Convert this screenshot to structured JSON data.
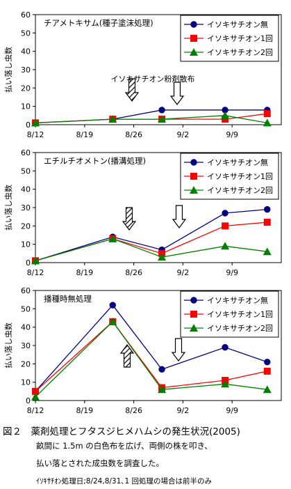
{
  "chart_data": [
    {
      "type": "line",
      "title": "チアメトキサム(種子塗沫処理)",
      "ylabel": "払い落し虫数",
      "xlabel": "",
      "x": [
        "8/12",
        "8/23",
        "8/30",
        "9/8",
        "9/14"
      ],
      "x_ticks": [
        "8/12",
        "8/19",
        "8/26",
        "9/2",
        "9/9"
      ],
      "ylim": [
        0,
        60
      ],
      "y_ticks": [
        0,
        10,
        20,
        30,
        40,
        50,
        60
      ],
      "legend_position": "top-right",
      "series": [
        {
          "name": "イソキサチオン無",
          "color": "#000080",
          "marker": "circle",
          "values": [
            1,
            3,
            8,
            8,
            8
          ]
        },
        {
          "name": "イソキサチオン1回",
          "color": "#ff0000",
          "marker": "square",
          "values": [
            1,
            3,
            3,
            3,
            6
          ]
        },
        {
          "name": "イソキサチオン2回",
          "color": "#008000",
          "marker": "triangle",
          "values": [
            1,
            3,
            3,
            5,
            1
          ]
        }
      ],
      "annotation": "イソキサチオン粉剤散布"
    },
    {
      "type": "line",
      "title": "エチルチオメトン(播溝処理)",
      "ylabel": "払い落し虫数",
      "xlabel": "",
      "x": [
        "8/12",
        "8/23",
        "8/30",
        "9/8",
        "9/14"
      ],
      "x_ticks": [
        "8/12",
        "8/19",
        "8/26",
        "9/2",
        "9/9"
      ],
      "ylim": [
        0,
        60
      ],
      "y_ticks": [
        0,
        10,
        20,
        30,
        40,
        50,
        60
      ],
      "legend_position": "top-right",
      "series": [
        {
          "name": "イソキサチオン無",
          "color": "#000080",
          "marker": "circle",
          "values": [
            1,
            14,
            7,
            27,
            29
          ]
        },
        {
          "name": "イソキサチオン1回",
          "color": "#ff0000",
          "marker": "square",
          "values": [
            1,
            13,
            5,
            20,
            22
          ]
        },
        {
          "name": "イソキサチオン2回",
          "color": "#008000",
          "marker": "triangle",
          "values": [
            1,
            13,
            3,
            9,
            6
          ]
        }
      ]
    },
    {
      "type": "line",
      "title": "播種時無処理",
      "ylabel": "払い落し虫数",
      "xlabel": "",
      "x": [
        "8/12",
        "8/23",
        "8/30",
        "9/8",
        "9/14"
      ],
      "x_ticks": [
        "8/12",
        "8/19",
        "8/26",
        "9/2",
        "9/9"
      ],
      "ylim": [
        0,
        60
      ],
      "y_ticks": [
        0,
        10,
        20,
        30,
        40,
        50,
        60
      ],
      "legend_position": "top-right",
      "series": [
        {
          "name": "イソキサチオン無",
          "color": "#000080",
          "marker": "circle",
          "values": [
            5,
            52,
            17,
            29,
            21
          ]
        },
        {
          "name": "イソキサチオン1回",
          "color": "#ff0000",
          "marker": "square",
          "values": [
            5,
            43,
            7,
            11,
            16
          ]
        },
        {
          "name": "イソキサチオン2回",
          "color": "#008000",
          "marker": "triangle",
          "values": [
            2,
            43,
            6,
            9,
            6
          ]
        }
      ]
    }
  ],
  "caption": {
    "line1": "図２　薬剤処理とフタスジヒメハムシの発生状況(2005)",
    "line2": "畝間に 1.5m の白色布を広げ、両側の株を叩き、",
    "line3": "払い落とされた成虫数を調査した。",
    "line4": "ｲｿｷｻﾁｵﾝ処理日;8/24,8/31､1 回処理の場合は前半のみ"
  }
}
